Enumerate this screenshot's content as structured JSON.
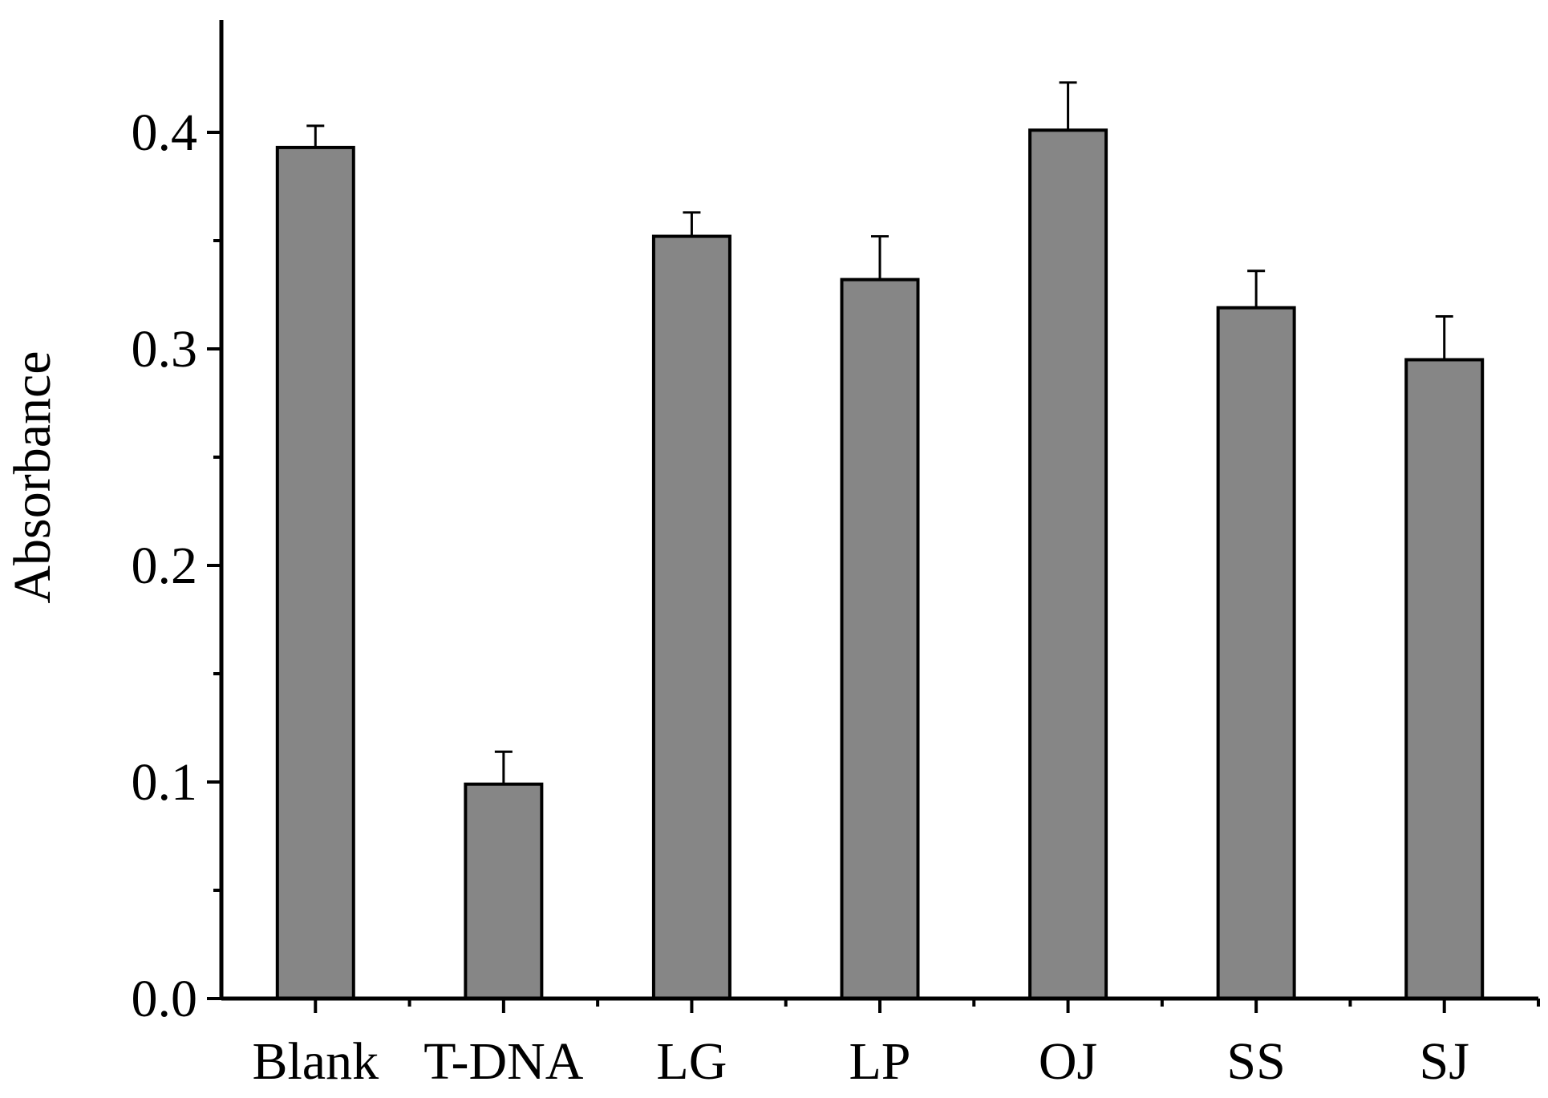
{
  "chart_data": {
    "type": "bar",
    "title": "",
    "xlabel": "",
    "ylabel": "Absorbance",
    "ylim": [
      0,
      0.45
    ],
    "categories": [
      "Blank",
      "T-DNA",
      "LG",
      "LP",
      "OJ",
      "SS",
      "SJ"
    ],
    "values": [
      0.393,
      0.099,
      0.352,
      0.332,
      0.401,
      0.319,
      0.295
    ],
    "errors": [
      0.01,
      0.015,
      0.011,
      0.02,
      0.022,
      0.017,
      0.02
    ],
    "yticks": [
      0.0,
      0.1,
      0.2,
      0.3,
      0.4
    ],
    "ytick_labels": [
      "0.0",
      "0.1",
      "0.2",
      "0.3",
      "0.4"
    ],
    "bar_color": "#868686",
    "grid": false,
    "legend": "none"
  }
}
